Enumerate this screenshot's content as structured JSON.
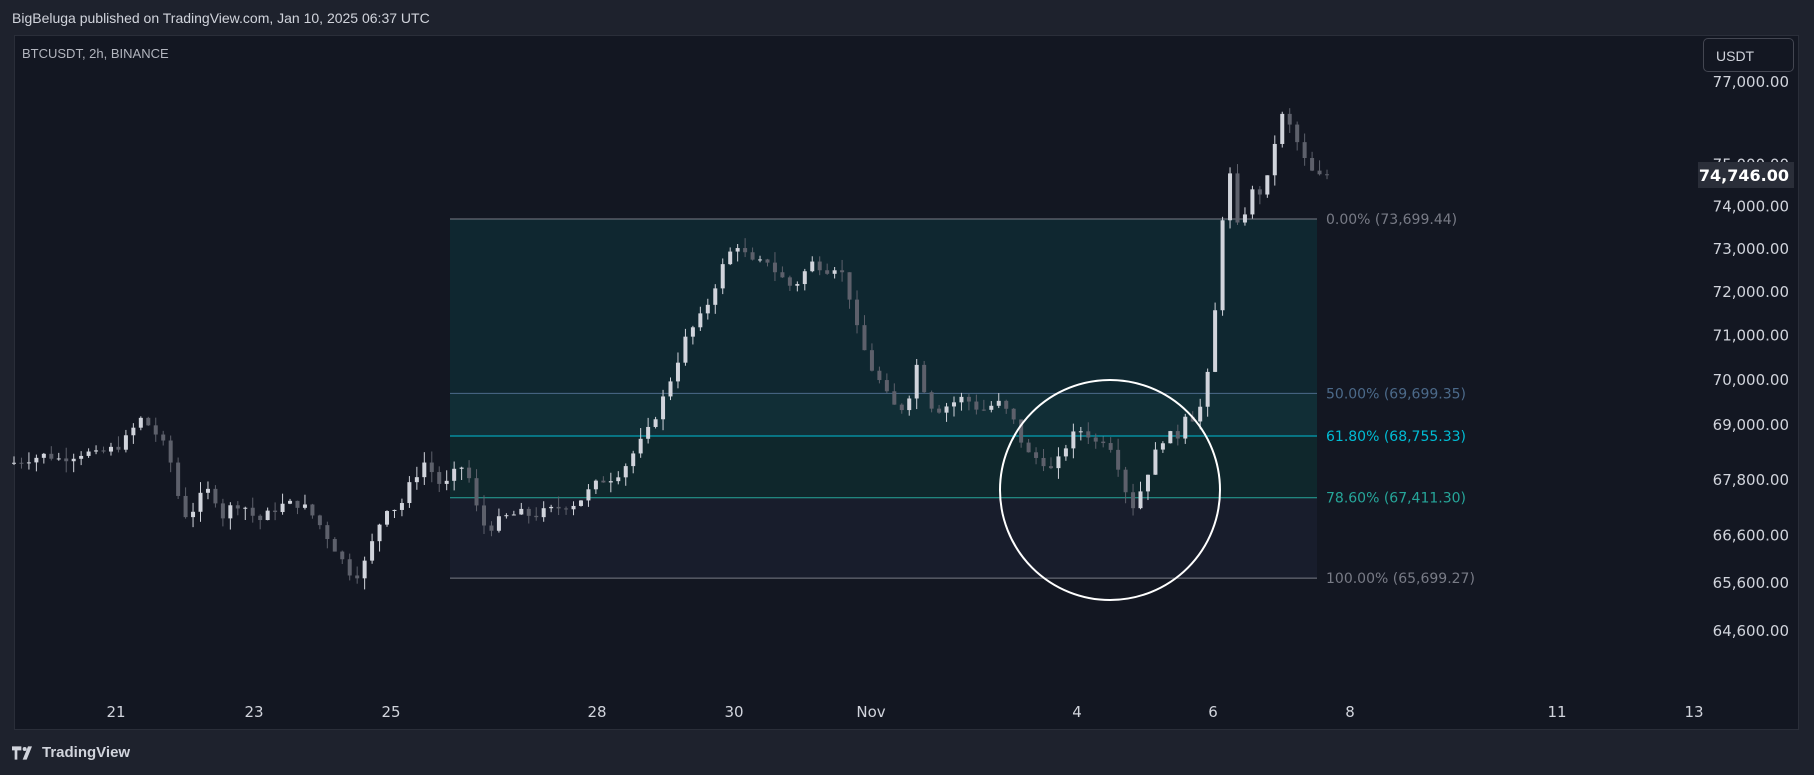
{
  "header": {
    "published_line": "BigBeluga published on TradingView.com, Jan 10, 2025 06:37 UTC"
  },
  "chart": {
    "symbol_line": "BTCUSDT, 2h, BINANCE",
    "currency_button": "USDT",
    "current_price_label": "74,746.00"
  },
  "footer": {
    "logo_text": "TradingView",
    "logo_icon": "tradingview-logo-icon"
  },
  "colors": {
    "background": "#131722",
    "outer": "#1e222d",
    "candle_up": "#d1d4dc",
    "candle_down": "#5d606b",
    "fib_0": "#787b86",
    "fib_50": "#4c6a8a",
    "fib_618": "#00bcd4",
    "fib_786": "#26a69a",
    "fib_100": "#787b86",
    "circle": "#ffffff"
  },
  "chart_data": {
    "type": "candlestick",
    "title": "BTCUSDT, 2h, BINANCE",
    "y_axis": {
      "scale": "log",
      "range": [
        64000,
        77300
      ],
      "tick_labels": [
        "77,000.00",
        "75,000.00",
        "74,000.00",
        "73,000.00",
        "72,000.00",
        "71,000.00",
        "70,000.00",
        "69,000.00",
        "67,800.00",
        "66,600.00",
        "65,600.00",
        "64,600.00"
      ],
      "tick_values": [
        77000,
        75000,
        74000,
        73000,
        72000,
        71000,
        70000,
        69000,
        67800,
        66600,
        65600,
        64600
      ]
    },
    "x_axis": {
      "tick_labels": [
        "21",
        "23",
        "25",
        "28",
        "30",
        "Nov",
        "4",
        "6",
        "8",
        "11",
        "13"
      ]
    },
    "last_price": 74746.0,
    "fibonacci_levels": [
      {
        "label": "0.00% (73,699.44)",
        "value": 73699.44
      },
      {
        "label": "50.00% (69,699.35)",
        "value": 69699.35
      },
      {
        "label": "61.80% (68,755.33)",
        "value": 68755.33
      },
      {
        "label": "78.60% (67,411.30)",
        "value": 67411.3
      },
      {
        "label": "100.00% (65,699.27)",
        "value": 65699.27
      }
    ],
    "annotation": "circle highlighting retest of 61.8% level before breakout",
    "price_path": [
      {
        "x": 0,
        "p": 68150
      },
      {
        "x": 8,
        "p": 68220
      },
      {
        "x": 16,
        "p": 68280
      },
      {
        "x": 24,
        "p": 68350
      },
      {
        "x": 32,
        "p": 68250
      },
      {
        "x": 40,
        "p": 68300
      },
      {
        "x": 50,
        "p": 68400
      },
      {
        "x": 58,
        "p": 68350
      },
      {
        "x": 66,
        "p": 68450
      },
      {
        "x": 74,
        "p": 68550
      },
      {
        "x": 82,
        "p": 68900
      },
      {
        "x": 88,
        "p": 69150
      },
      {
        "x": 94,
        "p": 68950
      },
      {
        "x": 100,
        "p": 68700
      },
      {
        "x": 106,
        "p": 68400
      },
      {
        "x": 112,
        "p": 67500
      },
      {
        "x": 118,
        "p": 67000
      },
      {
        "x": 124,
        "p": 67200
      },
      {
        "x": 130,
        "p": 67600
      },
      {
        "x": 136,
        "p": 67500
      },
      {
        "x": 142,
        "p": 67000
      },
      {
        "x": 150,
        "p": 67300
      },
      {
        "x": 158,
        "p": 67200
      },
      {
        "x": 166,
        "p": 66900
      },
      {
        "x": 174,
        "p": 67100
      },
      {
        "x": 182,
        "p": 67250
      },
      {
        "x": 190,
        "p": 67300
      },
      {
        "x": 198,
        "p": 67200
      },
      {
        "x": 206,
        "p": 66900
      },
      {
        "x": 214,
        "p": 66500
      },
      {
        "x": 222,
        "p": 66100
      },
      {
        "x": 230,
        "p": 65700
      },
      {
        "x": 236,
        "p": 65900
      },
      {
        "x": 242,
        "p": 66400
      },
      {
        "x": 248,
        "p": 66900
      },
      {
        "x": 254,
        "p": 67300
      },
      {
        "x": 260,
        "p": 67100
      },
      {
        "x": 266,
        "p": 67600
      },
      {
        "x": 272,
        "p": 67900
      },
      {
        "x": 278,
        "p": 68200
      },
      {
        "x": 284,
        "p": 67900
      },
      {
        "x": 290,
        "p": 67600
      },
      {
        "x": 296,
        "p": 67900
      },
      {
        "x": 302,
        "p": 68100
      },
      {
        "x": 308,
        "p": 67800
      },
      {
        "x": 314,
        "p": 67000
      },
      {
        "x": 320,
        "p": 66700
      },
      {
        "x": 326,
        "p": 66900
      },
      {
        "x": 332,
        "p": 67000
      },
      {
        "x": 338,
        "p": 67050
      },
      {
        "x": 344,
        "p": 67100
      },
      {
        "x": 350,
        "p": 67000
      },
      {
        "x": 356,
        "p": 67100
      },
      {
        "x": 362,
        "p": 67150
      },
      {
        "x": 368,
        "p": 67200
      },
      {
        "x": 374,
        "p": 67250
      },
      {
        "x": 380,
        "p": 67300
      },
      {
        "x": 386,
        "p": 67500
      },
      {
        "x": 392,
        "p": 67700
      },
      {
        "x": 398,
        "p": 67800
      },
      {
        "x": 404,
        "p": 67850
      },
      {
        "x": 410,
        "p": 68000
      },
      {
        "x": 416,
        "p": 68300
      },
      {
        "x": 422,
        "p": 68600
      },
      {
        "x": 428,
        "p": 68900
      },
      {
        "x": 434,
        "p": 69300
      },
      {
        "x": 440,
        "p": 69800
      },
      {
        "x": 446,
        "p": 70300
      },
      {
        "x": 452,
        "p": 70900
      },
      {
        "x": 458,
        "p": 71200
      },
      {
        "x": 464,
        "p": 71500
      },
      {
        "x": 470,
        "p": 71900
      },
      {
        "x": 476,
        "p": 72500
      },
      {
        "x": 482,
        "p": 72900
      },
      {
        "x": 488,
        "p": 73100
      },
      {
        "x": 494,
        "p": 72800
      },
      {
        "x": 500,
        "p": 72600
      },
      {
        "x": 506,
        "p": 72800
      },
      {
        "x": 512,
        "p": 72500
      },
      {
        "x": 518,
        "p": 72300
      },
      {
        "x": 524,
        "p": 72100
      },
      {
        "x": 530,
        "p": 72300
      },
      {
        "x": 536,
        "p": 72700
      },
      {
        "x": 542,
        "p": 72600
      },
      {
        "x": 548,
        "p": 72500
      },
      {
        "x": 554,
        "p": 72600
      },
      {
        "x": 560,
        "p": 72300
      },
      {
        "x": 566,
        "p": 71300
      },
      {
        "x": 572,
        "p": 70700
      },
      {
        "x": 578,
        "p": 70200
      },
      {
        "x": 584,
        "p": 69900
      },
      {
        "x": 590,
        "p": 69500
      },
      {
        "x": 596,
        "p": 69300
      },
      {
        "x": 602,
        "p": 69600
      },
      {
        "x": 608,
        "p": 70400
      },
      {
        "x": 614,
        "p": 69600
      },
      {
        "x": 620,
        "p": 69300
      },
      {
        "x": 626,
        "p": 69400
      },
      {
        "x": 632,
        "p": 69500
      },
      {
        "x": 638,
        "p": 69600
      },
      {
        "x": 644,
        "p": 69500
      },
      {
        "x": 650,
        "p": 69300
      },
      {
        "x": 656,
        "p": 69400
      },
      {
        "x": 662,
        "p": 69500
      },
      {
        "x": 668,
        "p": 69300
      },
      {
        "x": 674,
        "p": 69000
      },
      {
        "x": 680,
        "p": 68400
      },
      {
        "x": 686,
        "p": 68300
      },
      {
        "x": 692,
        "p": 68200
      },
      {
        "x": 698,
        "p": 68000
      },
      {
        "x": 704,
        "p": 68300
      },
      {
        "x": 710,
        "p": 68700
      },
      {
        "x": 716,
        "p": 68900
      },
      {
        "x": 722,
        "p": 68800
      },
      {
        "x": 728,
        "p": 68600
      },
      {
        "x": 734,
        "p": 68700
      },
      {
        "x": 740,
        "p": 68400
      },
      {
        "x": 746,
        "p": 67700
      },
      {
        "x": 752,
        "p": 67200
      },
      {
        "x": 758,
        "p": 67600
      },
      {
        "x": 764,
        "p": 68100
      },
      {
        "x": 770,
        "p": 68600
      },
      {
        "x": 776,
        "p": 68800
      },
      {
        "x": 782,
        "p": 68700
      },
      {
        "x": 788,
        "p": 69300
      },
      {
        "x": 794,
        "p": 69100
      },
      {
        "x": 800,
        "p": 69600
      },
      {
        "x": 806,
        "p": 70800
      },
      {
        "x": 810,
        "p": 72800
      },
      {
        "x": 814,
        "p": 74300
      },
      {
        "x": 818,
        "p": 74800
      },
      {
        "x": 822,
        "p": 73500
      },
      {
        "x": 828,
        "p": 73900
      },
      {
        "x": 834,
        "p": 74500
      },
      {
        "x": 840,
        "p": 74200
      },
      {
        "x": 846,
        "p": 75300
      },
      {
        "x": 852,
        "p": 76200
      },
      {
        "x": 858,
        "p": 75900
      },
      {
        "x": 864,
        "p": 75400
      },
      {
        "x": 870,
        "p": 74900
      },
      {
        "x": 876,
        "p": 74700
      },
      {
        "x": 882,
        "p": 74746
      }
    ]
  }
}
